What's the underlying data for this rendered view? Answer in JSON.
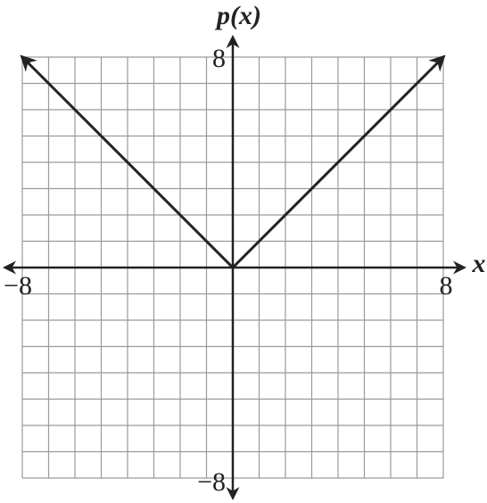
{
  "chart_data": {
    "type": "line",
    "x_label": "x",
    "y_label": "p(x)",
    "x": [
      -8,
      0,
      8
    ],
    "series": [
      {
        "name": "p(x)",
        "color": "#222222",
        "values": [
          8,
          0,
          8
        ]
      }
    ],
    "xlim": [
      -8,
      8
    ],
    "ylim": [
      -8,
      8
    ],
    "xticks": [
      {
        "value": -8,
        "label": "−8"
      },
      8
    ],
    "yticks": [
      {
        "value": -8,
        "label": "−8"
      },
      8
    ],
    "grid": true,
    "xgrid": [
      -8,
      -7,
      -6,
      -5,
      -4,
      -3,
      -2,
      -1,
      0,
      1,
      2,
      3,
      4,
      5,
      6,
      7,
      8
    ],
    "ygrid": [
      -8,
      -7,
      -6,
      -5,
      -4,
      -3,
      -2,
      -1,
      0,
      1,
      2,
      3,
      4,
      5,
      6,
      7,
      8
    ]
  }
}
